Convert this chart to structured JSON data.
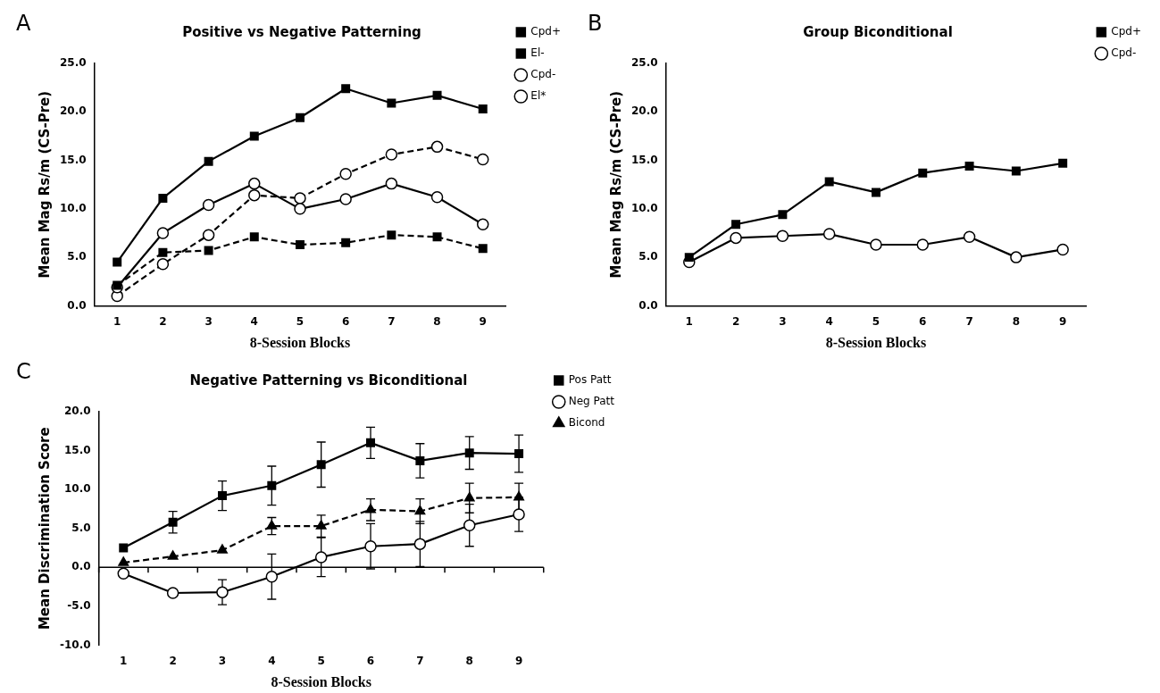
{
  "chart_data": [
    {
      "type": "line",
      "title": "Positive vs Negative Patterning",
      "xlabel": "8-Session Blocks",
      "ylabel": "Mean Mag Rs/m (CS-Pre)",
      "annotations": [
        "A"
      ],
      "categories": [
        "1",
        "2",
        "3",
        "4",
        "5",
        "6",
        "7",
        "8",
        "9"
      ],
      "ylim": [
        0,
        25
      ],
      "yticks": [
        {
          "value": 0,
          "label": "0.0"
        },
        {
          "value": 5,
          "label": "5.0"
        },
        {
          "value": 10,
          "label": "10.0"
        },
        {
          "value": 15,
          "label": "15.0"
        },
        {
          "value": 20,
          "label": "20.0"
        },
        {
          "value": 25,
          "label": "25.0"
        }
      ],
      "grid": false,
      "legend": "right",
      "series": [
        {
          "name": "Cpd+",
          "color": "#000000",
          "marker": "square",
          "line_style": "solid",
          "values": [
            4.5,
            11.1,
            14.9,
            17.5,
            19.4,
            22.4,
            20.9,
            21.7,
            20.3
          ]
        },
        {
          "name": "El-",
          "color": "#000000",
          "marker": "square",
          "line_style": "dashed",
          "values": [
            2.1,
            5.5,
            5.7,
            7.1,
            6.3,
            6.5,
            7.3,
            7.1,
            5.9
          ]
        },
        {
          "name": "Cpd-",
          "color": "#000000",
          "marker": "circle",
          "line_style": "solid",
          "values": [
            1.9,
            7.5,
            10.4,
            12.6,
            10.0,
            11.0,
            12.6,
            11.2,
            8.4
          ]
        },
        {
          "name": "El*",
          "color": "#000000",
          "marker": "circle",
          "line_style": "dashed",
          "values": [
            1.0,
            4.3,
            7.3,
            11.4,
            11.1,
            13.6,
            15.6,
            16.4,
            15.1
          ]
        }
      ]
    },
    {
      "type": "line",
      "title": "Group Biconditional",
      "xlabel": "8-Session Blocks",
      "ylabel": "Mean Mag Rs/m (CS-Pre)",
      "annotations": [
        "B"
      ],
      "categories": [
        "1",
        "2",
        "3",
        "4",
        "5",
        "6",
        "7",
        "8",
        "9"
      ],
      "ylim": [
        0,
        25
      ],
      "yticks": [
        {
          "value": 0,
          "label": "0.0"
        },
        {
          "value": 5,
          "label": "5.0"
        },
        {
          "value": 10,
          "label": "10.0"
        },
        {
          "value": 15,
          "label": "15.0"
        },
        {
          "value": 20,
          "label": "20.0"
        },
        {
          "value": 25,
          "label": "25.0"
        }
      ],
      "grid": false,
      "legend": "right",
      "series": [
        {
          "name": "Cpd+",
          "color": "#000000",
          "marker": "square",
          "line_style": "solid",
          "values": [
            5.0,
            8.4,
            9.4,
            12.8,
            11.7,
            13.7,
            14.4,
            13.9,
            14.7
          ]
        },
        {
          "name": "Cpd-",
          "color": "#000000",
          "marker": "circle",
          "line_style": "solid",
          "values": [
            4.5,
            7.0,
            7.2,
            7.4,
            6.3,
            6.3,
            7.1,
            5.0,
            5.8
          ]
        }
      ]
    },
    {
      "type": "line",
      "title": "Negative Patterning vs Biconditional",
      "xlabel": "8-Session Blocks",
      "ylabel": "Mean Discrimination Score",
      "annotations": [
        "C"
      ],
      "categories": [
        "1",
        "2",
        "3",
        "4",
        "5",
        "6",
        "7",
        "8",
        "9"
      ],
      "ylim": [
        -10,
        20
      ],
      "yticks": [
        {
          "value": -10,
          "label": "-10.0"
        },
        {
          "value": -5,
          "label": "-5.0"
        },
        {
          "value": 0,
          "label": "0.0"
        },
        {
          "value": 5,
          "label": "5.0"
        },
        {
          "value": 10,
          "label": "10.0"
        },
        {
          "value": 15,
          "label": "15.0"
        },
        {
          "value": 20,
          "label": "20.0"
        }
      ],
      "grid": false,
      "legend": "top right",
      "ref_lines": [
        {
          "axis": "y",
          "value": 0,
          "color": "#000000"
        }
      ],
      "series": [
        {
          "name": "Pos Patt",
          "color": "#000000",
          "marker": "square",
          "line_style": "solid",
          "values": [
            2.5,
            5.8,
            9.2,
            10.5,
            13.2,
            16.0,
            13.7,
            14.7,
            14.6
          ],
          "errors": [
            null,
            1.4,
            1.9,
            2.5,
            2.9,
            2.0,
            2.2,
            2.1,
            2.4
          ]
        },
        {
          "name": "Neg Patt",
          "color": "#000000",
          "marker": "circle",
          "line_style": "solid",
          "values": [
            -0.8,
            -3.3,
            -3.2,
            -1.2,
            1.3,
            2.7,
            3.0,
            5.4,
            6.8
          ],
          "errors": [
            null,
            null,
            1.6,
            2.9,
            2.5,
            2.9,
            2.9,
            2.7,
            2.2
          ]
        },
        {
          "name": "Bicond",
          "color": "#000000",
          "marker": "triangle",
          "line_style": "dashed",
          "values": [
            0.6,
            1.4,
            2.2,
            5.3,
            5.3,
            7.4,
            7.2,
            8.9,
            9.0
          ],
          "errors": [
            null,
            null,
            null,
            1.1,
            1.4,
            1.4,
            1.6,
            1.9,
            1.8
          ]
        }
      ]
    }
  ]
}
